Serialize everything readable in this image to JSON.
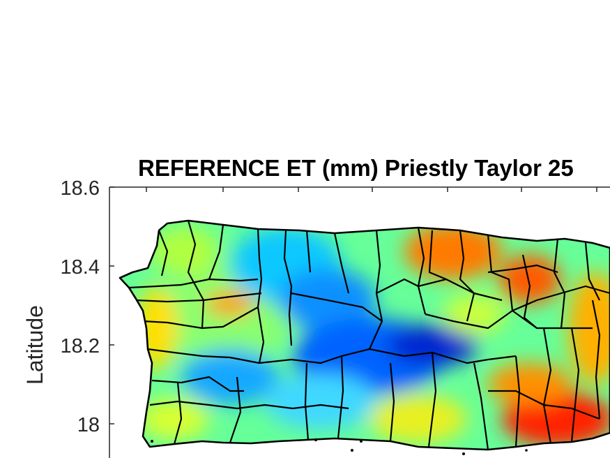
{
  "title": "REFERENCE ET (mm) Priestly Taylor 25",
  "ylabel": "Latitude",
  "yticks": [
    "18.6",
    "18.4",
    "18.2",
    "18"
  ],
  "colors": {
    "background": "#ffffff",
    "axis": "#262626",
    "borders": "#000000",
    "colormap": [
      "#00008f",
      "#0050ff",
      "#00c8ff",
      "#50ffb0",
      "#c8ff40",
      "#ffd800",
      "#ff7a00",
      "#e01000",
      "#8f0000"
    ]
  },
  "chart_data": {
    "type": "heatmap",
    "title": "REFERENCE ET (mm) Priestly Taylor 25",
    "xlabel": "",
    "ylabel": "Latitude",
    "ylim": [
      17.9,
      18.6
    ],
    "y_ticks": [
      18.6,
      18.4,
      18.2,
      18
    ],
    "colormap": "jet",
    "grid": false,
    "legend": "none"
  }
}
